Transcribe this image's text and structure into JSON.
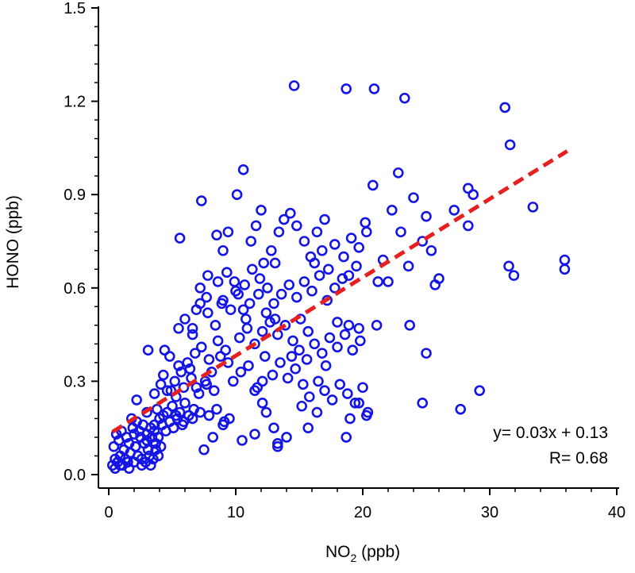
{
  "chart_data": {
    "type": "scatter",
    "title": "",
    "xlabel_main": "NO",
    "xlabel_sub": "2",
    "xlabel_unit": " (ppb)",
    "ylabel": "HONO (ppb)",
    "xlim": [
      0,
      40
    ],
    "ylim": [
      0,
      1.5
    ],
    "x_ticks": [
      0,
      10,
      20,
      30,
      40
    ],
    "y_ticks": [
      0.0,
      0.3,
      0.6,
      0.9,
      1.2,
      1.5
    ],
    "x_tick_labels": [
      "0",
      "10",
      "20",
      "30",
      "40"
    ],
    "y_tick_labels": [
      "0.0",
      "0.3",
      "0.6",
      "0.9",
      "1.2",
      "1.5"
    ],
    "grid": false,
    "marker_color": "#1414e6",
    "fit_color": "#e62020",
    "fit": {
      "slope": 0.0252,
      "intercept": 0.13,
      "x_range": [
        0.3,
        36.1
      ]
    },
    "annotations": [
      "y= 0.03x + 0.13",
      "R= 0.68"
    ],
    "points": [
      [
        0.3,
        0.03
      ],
      [
        0.5,
        0.05
      ],
      [
        0.7,
        0.04
      ],
      [
        0.9,
        0.06
      ],
      [
        1.1,
        0.03
      ],
      [
        1.3,
        0.05
      ],
      [
        1.5,
        0.04
      ],
      [
        1.7,
        0.07
      ],
      [
        2.0,
        0.04
      ],
      [
        2.3,
        0.06
      ],
      [
        2.6,
        0.05
      ],
      [
        2.9,
        0.04
      ],
      [
        3.2,
        0.06
      ],
      [
        3.5,
        0.05
      ],
      [
        0.4,
        0.09
      ],
      [
        0.8,
        0.11
      ],
      [
        1.2,
        0.08
      ],
      [
        1.6,
        0.1
      ],
      [
        2.1,
        0.09
      ],
      [
        2.5,
        0.12
      ],
      [
        2.8,
        0.1
      ],
      [
        3.1,
        0.08
      ],
      [
        3.4,
        0.12
      ],
      [
        3.7,
        0.1
      ],
      [
        0.6,
        0.13
      ],
      [
        1.0,
        0.14
      ],
      [
        1.4,
        0.12
      ],
      [
        1.9,
        0.15
      ],
      [
        2.4,
        0.14
      ],
      [
        2.7,
        0.16
      ],
      [
        3.0,
        0.13
      ],
      [
        3.3,
        0.15
      ],
      [
        3.6,
        0.14
      ],
      [
        3.9,
        0.12
      ],
      [
        4.2,
        0.16
      ],
      [
        4.5,
        0.14
      ],
      [
        4.8,
        0.17
      ],
      [
        5.1,
        0.15
      ],
      [
        5.4,
        0.18
      ],
      [
        5.8,
        0.16
      ],
      [
        1.8,
        0.18
      ],
      [
        2.2,
        0.17
      ],
      [
        3.0,
        0.2
      ],
      [
        3.8,
        0.21
      ],
      [
        4.3,
        0.19
      ],
      [
        5.0,
        0.22
      ],
      [
        5.6,
        0.2
      ],
      [
        6.0,
        0.23
      ],
      [
        6.3,
        0.19
      ],
      [
        6.7,
        0.21
      ],
      [
        2.2,
        0.24
      ],
      [
        3.6,
        0.26
      ],
      [
        4.1,
        0.29
      ],
      [
        4.6,
        0.27
      ],
      [
        5.2,
        0.3
      ],
      [
        5.9,
        0.28
      ],
      [
        6.5,
        0.31
      ],
      [
        7.1,
        0.26
      ],
      [
        7.7,
        0.29
      ],
      [
        8.3,
        0.27
      ],
      [
        3.1,
        0.4
      ],
      [
        4.4,
        0.4
      ],
      [
        4.8,
        0.38
      ],
      [
        5.5,
        0.35
      ],
      [
        6.2,
        0.36
      ],
      [
        6.8,
        0.39
      ],
      [
        7.3,
        0.41
      ],
      [
        7.9,
        0.37
      ],
      [
        8.6,
        0.43
      ],
      [
        9.2,
        0.4
      ],
      [
        5.5,
        0.47
      ],
      [
        6.0,
        0.5
      ],
      [
        6.6,
        0.45
      ],
      [
        7.2,
        0.55
      ],
      [
        7.8,
        0.52
      ],
      [
        8.4,
        0.48
      ],
      [
        9.0,
        0.56
      ],
      [
        9.6,
        0.53
      ],
      [
        10.2,
        0.58
      ],
      [
        10.8,
        0.5
      ],
      [
        5.6,
        0.76
      ],
      [
        7.3,
        0.88
      ],
      [
        8.5,
        0.77
      ],
      [
        9.0,
        0.72
      ],
      [
        9.4,
        0.78
      ],
      [
        10.1,
        0.9
      ],
      [
        10.6,
        0.98
      ],
      [
        11.2,
        0.75
      ],
      [
        11.6,
        0.8
      ],
      [
        12.0,
        0.85
      ],
      [
        7.2,
        0.6
      ],
      [
        7.8,
        0.64
      ],
      [
        8.6,
        0.62
      ],
      [
        9.3,
        0.65
      ],
      [
        10.0,
        0.59
      ],
      [
        10.7,
        0.61
      ],
      [
        11.3,
        0.66
      ],
      [
        11.9,
        0.63
      ],
      [
        12.5,
        0.6
      ],
      [
        13.1,
        0.68
      ],
      [
        7.5,
        0.08
      ],
      [
        8.2,
        0.12
      ],
      [
        9.0,
        0.16
      ],
      [
        9.5,
        0.18
      ],
      [
        10.5,
        0.11
      ],
      [
        11.5,
        0.13
      ],
      [
        12.4,
        0.2
      ],
      [
        13.3,
        0.09
      ],
      [
        13.0,
        0.15
      ],
      [
        12.1,
        0.23
      ],
      [
        9.8,
        0.3
      ],
      [
        10.4,
        0.33
      ],
      [
        11.0,
        0.35
      ],
      [
        11.7,
        0.28
      ],
      [
        12.3,
        0.38
      ],
      [
        12.9,
        0.32
      ],
      [
        13.5,
        0.36
      ],
      [
        14.1,
        0.31
      ],
      [
        14.7,
        0.34
      ],
      [
        15.3,
        0.29
      ],
      [
        10.3,
        0.44
      ],
      [
        10.9,
        0.47
      ],
      [
        11.5,
        0.42
      ],
      [
        12.1,
        0.46
      ],
      [
        12.7,
        0.49
      ],
      [
        13.3,
        0.45
      ],
      [
        13.9,
        0.48
      ],
      [
        14.5,
        0.43
      ],
      [
        15.1,
        0.5
      ],
      [
        15.7,
        0.46
      ],
      [
        12.2,
        0.68
      ],
      [
        12.8,
        0.72
      ],
      [
        13.4,
        0.78
      ],
      [
        13.8,
        0.82
      ],
      [
        14.3,
        0.84
      ],
      [
        14.8,
        0.8
      ],
      [
        15.4,
        0.75
      ],
      [
        15.9,
        0.7
      ],
      [
        16.4,
        0.78
      ],
      [
        17.0,
        0.82
      ],
      [
        13.0,
        0.55
      ],
      [
        13.6,
        0.58
      ],
      [
        14.2,
        0.61
      ],
      [
        14.8,
        0.57
      ],
      [
        15.4,
        0.62
      ],
      [
        16.0,
        0.59
      ],
      [
        16.6,
        0.64
      ],
      [
        17.2,
        0.56
      ],
      [
        17.8,
        0.6
      ],
      [
        18.4,
        0.63
      ],
      [
        14.4,
        0.38
      ],
      [
        15.0,
        0.4
      ],
      [
        15.6,
        0.37
      ],
      [
        16.2,
        0.42
      ],
      [
        16.8,
        0.39
      ],
      [
        17.4,
        0.44
      ],
      [
        18.0,
        0.41
      ],
      [
        18.6,
        0.45
      ],
      [
        19.2,
        0.4
      ],
      [
        19.8,
        0.43
      ],
      [
        15.2,
        0.22
      ],
      [
        15.8,
        0.25
      ],
      [
        16.4,
        0.2
      ],
      [
        17.0,
        0.27
      ],
      [
        17.6,
        0.24
      ],
      [
        18.2,
        0.29
      ],
      [
        18.8,
        0.26
      ],
      [
        19.4,
        0.23
      ],
      [
        20.0,
        0.28
      ],
      [
        20.3,
        0.19
      ],
      [
        16.2,
        0.68
      ],
      [
        16.8,
        0.72
      ],
      [
        17.3,
        0.66
      ],
      [
        17.8,
        0.74
      ],
      [
        18.5,
        0.7
      ],
      [
        19.1,
        0.76
      ],
      [
        19.7,
        0.73
      ],
      [
        20.3,
        0.78
      ],
      [
        18.9,
        0.64
      ],
      [
        19.5,
        0.67
      ],
      [
        14.6,
        1.25
      ],
      [
        18.7,
        1.24
      ],
      [
        20.9,
        1.24
      ],
      [
        23.3,
        1.21
      ],
      [
        31.2,
        1.18
      ],
      [
        31.6,
        1.06
      ],
      [
        20.8,
        0.93
      ],
      [
        22.8,
        0.97
      ],
      [
        24.0,
        0.89
      ],
      [
        28.3,
        0.92
      ],
      [
        28.7,
        0.9
      ],
      [
        28.3,
        0.8
      ],
      [
        27.2,
        0.85
      ],
      [
        25.0,
        0.83
      ],
      [
        22.3,
        0.85
      ],
      [
        20.2,
        0.81
      ],
      [
        23.0,
        0.78
      ],
      [
        24.7,
        0.75
      ],
      [
        25.4,
        0.72
      ],
      [
        21.6,
        0.69
      ],
      [
        23.6,
        0.67
      ],
      [
        26.0,
        0.63
      ],
      [
        25.7,
        0.61
      ],
      [
        22.0,
        0.62
      ],
      [
        21.2,
        0.62
      ],
      [
        33.4,
        0.86
      ],
      [
        31.5,
        0.67
      ],
      [
        31.9,
        0.64
      ],
      [
        35.9,
        0.69
      ],
      [
        35.9,
        0.66
      ],
      [
        21.1,
        0.48
      ],
      [
        23.7,
        0.48
      ],
      [
        25.0,
        0.39
      ],
      [
        24.7,
        0.23
      ],
      [
        29.2,
        0.27
      ],
      [
        27.7,
        0.21
      ],
      [
        19.7,
        0.23
      ],
      [
        20.4,
        0.2
      ],
      [
        19.0,
        0.18
      ],
      [
        18.7,
        0.12
      ],
      [
        18.9,
        0.48
      ],
      [
        19.7,
        0.47
      ],
      [
        18.0,
        0.49
      ],
      [
        17.1,
        0.35
      ],
      [
        16.5,
        0.3
      ],
      [
        15.7,
        0.15
      ],
      [
        14.0,
        0.12
      ],
      [
        13.3,
        0.1
      ],
      [
        12.1,
        0.3
      ],
      [
        11.5,
        0.27
      ],
      [
        6.6,
        0.47
      ],
      [
        6.9,
        0.53
      ],
      [
        7.7,
        0.57
      ],
      [
        8.9,
        0.55
      ],
      [
        9.9,
        0.62
      ],
      [
        10.6,
        0.53
      ],
      [
        11.1,
        0.55
      ],
      [
        11.8,
        0.58
      ],
      [
        12.4,
        0.52
      ],
      [
        13.1,
        0.5
      ],
      [
        4.3,
        0.32
      ],
      [
        4.9,
        0.27
      ],
      [
        5.3,
        0.25
      ],
      [
        5.7,
        0.33
      ],
      [
        6.4,
        0.34
      ],
      [
        6.9,
        0.28
      ],
      [
        7.6,
        0.3
      ],
      [
        8.1,
        0.33
      ],
      [
        8.8,
        0.38
      ],
      [
        9.4,
        0.36
      ],
      [
        3.6,
        0.16
      ],
      [
        4.0,
        0.18
      ],
      [
        4.6,
        0.2
      ],
      [
        5.3,
        0.19
      ],
      [
        5.9,
        0.17
      ],
      [
        6.6,
        0.18
      ],
      [
        7.2,
        0.2
      ],
      [
        7.9,
        0.19
      ],
      [
        8.5,
        0.21
      ],
      [
        9.1,
        0.17
      ],
      [
        0.5,
        0.02
      ],
      [
        0.9,
        0.03
      ],
      [
        1.6,
        0.02
      ],
      [
        2.6,
        0.03
      ],
      [
        3.3,
        0.03
      ],
      [
        3.9,
        0.06
      ],
      [
        3.7,
        0.08
      ],
      [
        4.1,
        0.09
      ],
      [
        3.0,
        0.11
      ],
      [
        2.0,
        0.13
      ]
    ]
  }
}
